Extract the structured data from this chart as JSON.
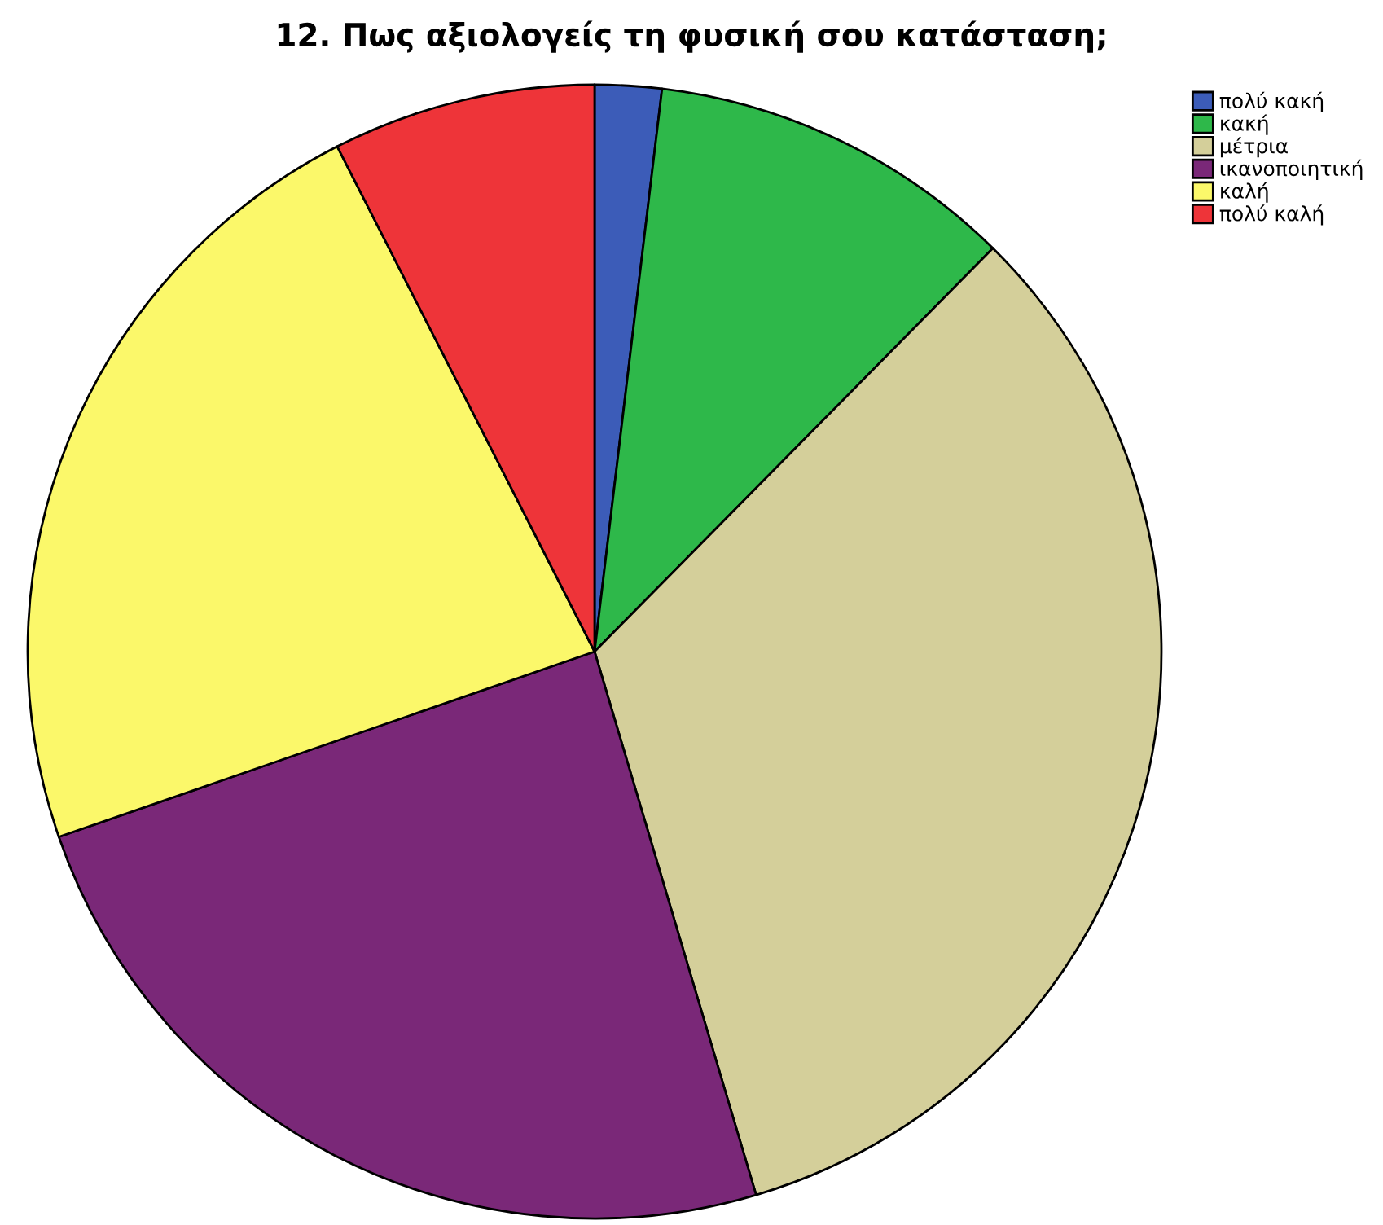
{
  "chart_data": {
    "type": "pie",
    "title": "12. Πως αξιολογείς τη φυσική σου κατάσταση;",
    "categories": [
      "πολύ κακή",
      "κακή",
      "μέτρια",
      "ικανοποιητική",
      "καλή",
      "πολύ καλή"
    ],
    "values": [
      1.9,
      10.5,
      33.0,
      24.3,
      22.8,
      7.5
    ],
    "colors": [
      "#3c5cb8",
      "#2eb84a",
      "#d4cf9a",
      "#7a2878",
      "#fbf86a",
      "#ee3439"
    ],
    "legend": "top right"
  }
}
